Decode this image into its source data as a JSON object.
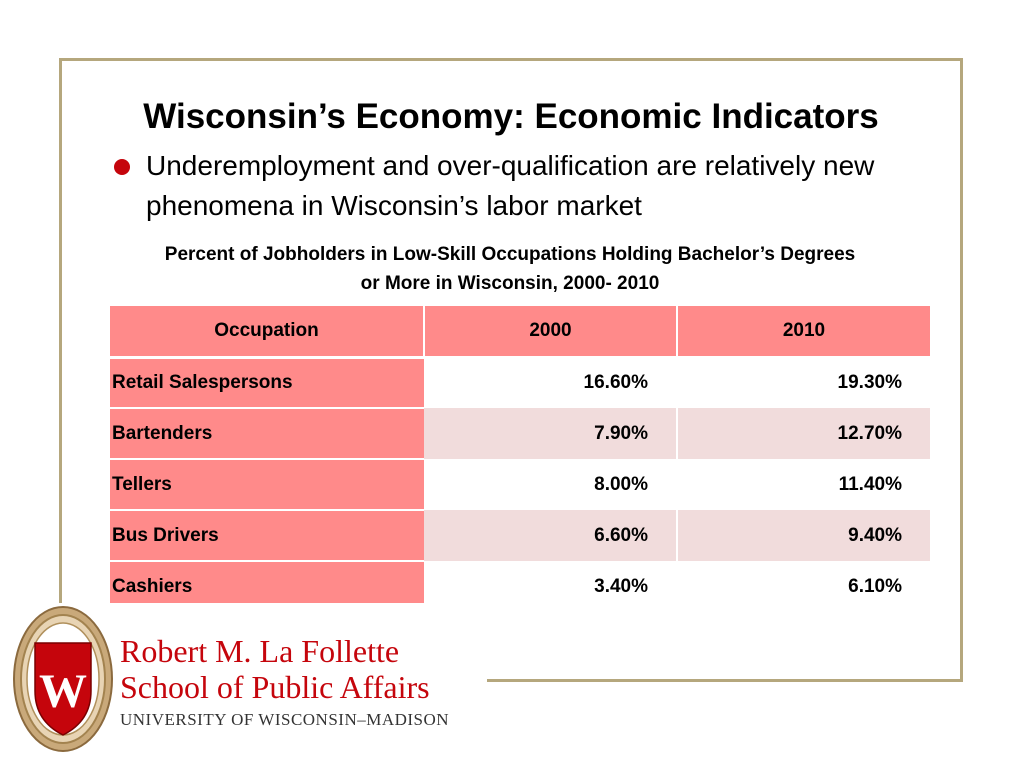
{
  "slide": {
    "title": "Wisconsin’s Economy: Economic Indicators",
    "bullet": "Underemployment and over-qualification are relatively new phenomena in Wisconsin’s labor market",
    "table_title_line1": "Percent of Jobholders in Low-Skill Occupations Holding Bachelor’s Degrees",
    "table_title_line2": "or More in Wisconsin, 2000- 2010"
  },
  "table": {
    "headers": [
      "Occupation",
      "2000",
      "2010"
    ],
    "rows": [
      {
        "occupation": "Retail Salespersons",
        "y2000": "16.60%",
        "y2010": "19.30%"
      },
      {
        "occupation": "Bartenders",
        "y2000": "7.90%",
        "y2010": "12.70%"
      },
      {
        "occupation": "Tellers",
        "y2000": "8.00%",
        "y2010": "11.40%"
      },
      {
        "occupation": "Bus Drivers",
        "y2000": "6.60%",
        "y2010": "9.40%"
      },
      {
        "occupation": "Cashiers",
        "y2000": "3.40%",
        "y2010": "6.10%"
      }
    ]
  },
  "logo": {
    "line1": "Robert M. La Follette",
    "line2": "School of Public Affairs",
    "line3": "UNIVERSITY OF WISCONSIN–MADISON",
    "seal_letter": "W"
  },
  "colors": {
    "accent_red": "#c5050c",
    "header_fill": "#ff8a8a",
    "shaded_row": "#f1dcdc",
    "frame": "#b5a77d"
  }
}
